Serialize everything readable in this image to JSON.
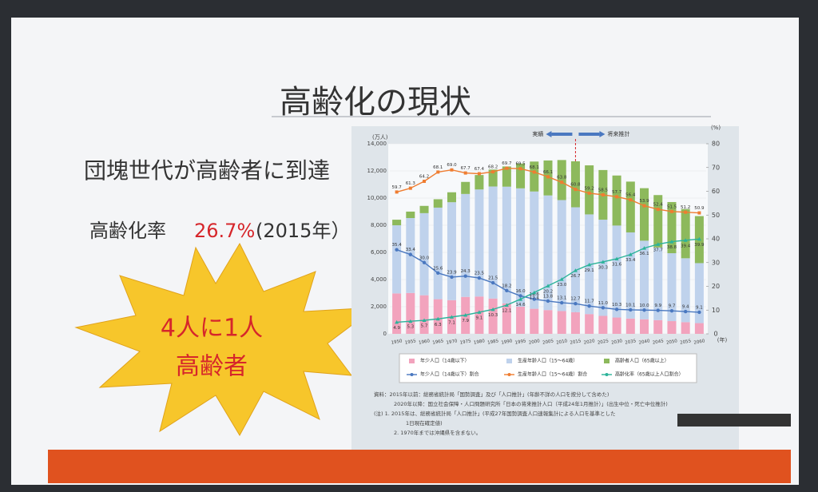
{
  "slide": {
    "title": "高齢化の現状",
    "subtitle": "団塊世代が高齢者に到達",
    "rate_label": "高齢化率",
    "rate_value": "26.7%",
    "rate_year": "(2015年）",
    "burst_line1": "4人に1人",
    "burst_line2": "高齢者"
  },
  "chart_data": {
    "type": "bar",
    "y_unit": "(万人)",
    "y2_unit": "(%)",
    "x_unit": "(年)",
    "annotations": [
      "実績",
      "将来推計"
    ],
    "categories": [
      "1950",
      "1955",
      "1960",
      "1965",
      "1970",
      "1975",
      "1980",
      "1985",
      "1990",
      "1995",
      "2000",
      "2005",
      "2010",
      "2015",
      "2020",
      "2025",
      "2030",
      "2035",
      "2040",
      "2045",
      "2050",
      "2055",
      "2060"
    ],
    "ylim": [
      0,
      14000
    ],
    "yticks": [
      0,
      {
        "value": 2000,
        "label": "2,000"
      },
      {
        "value": 4000,
        "label": "4,000"
      },
      {
        "value": 6000,
        "label": "6,000"
      },
      {
        "value": 8000,
        "label": "8,000"
      },
      {
        "value": 10000,
        "label": "10,000"
      },
      {
        "value": 12000,
        "label": "12,000"
      },
      {
        "value": 14000,
        "label": "14,000"
      }
    ],
    "y2lim": [
      0,
      80
    ],
    "y2ticks": [
      0,
      10,
      20,
      30,
      40,
      50,
      60,
      70,
      80
    ],
    "series": [
      {
        "name": "年少人口（14歳以下）",
        "type": "bar",
        "color": "#f2a3bd",
        "values": [
          2979,
          3012,
          2843,
          2553,
          2482,
          2722,
          2751,
          2603,
          2249,
          2001,
          1847,
          1752,
          1680,
          1595,
          1457,
          1324,
          1204,
          1129,
          1073,
          1012,
          939,
          861,
          791
        ]
      },
      {
        "name": "生産年齢人口（15～64歳）",
        "type": "bar",
        "color": "#bfd2ec",
        "values": [
          5017,
          5517,
          6047,
          6744,
          7212,
          7581,
          7883,
          8251,
          8590,
          8716,
          8638,
          8442,
          8174,
          7728,
          7341,
          7085,
          6773,
          6343,
          5787,
          5353,
          5001,
          4706,
          4418
        ]
      },
      {
        "name": "高齢者人口（65歳以上）",
        "type": "bar",
        "color": "#8db95c",
        "values": [
          411,
          475,
          535,
          618,
          733,
          887,
          1065,
          1247,
          1489,
          1826,
          2204,
          2576,
          2948,
          3387,
          3612,
          3657,
          3685,
          3741,
          3868,
          3856,
          3768,
          3626,
          3464
        ]
      },
      {
        "name": "年少人口（14歳以下）割合",
        "type": "line",
        "axis": "y2",
        "color": "#4a78c0",
        "values": [
          35.4,
          33.4,
          30.0,
          25.6,
          23.9,
          24.3,
          23.5,
          21.5,
          18.2,
          16.0,
          14.6,
          13.8,
          13.1,
          12.7,
          11.7,
          11.0,
          10.3,
          10.1,
          10.0,
          9.9,
          9.7,
          9.4,
          9.1
        ],
        "value_labels": [
          "35.4",
          "33.4",
          "30.0",
          "25.6",
          "23.9",
          "24.3",
          "23.5",
          "21.5",
          "18.2",
          "16.0",
          "14.6",
          "13.8",
          "13.1",
          "12.7",
          "11.7",
          "11.0",
          "10.3",
          "10.1",
          "10.0",
          "9.9",
          "9.7",
          "9.4",
          "9.1"
        ]
      },
      {
        "name": "生産年齢人口（15～64歳）割合",
        "type": "line",
        "axis": "y2",
        "color": "#ef7d31",
        "values": [
          59.7,
          61.3,
          64.2,
          68.1,
          69.0,
          67.7,
          67.4,
          68.2,
          69.7,
          69.5,
          68.1,
          66.1,
          63.8,
          60.8,
          59.2,
          58.5,
          57.7,
          56.4,
          53.9,
          52.4,
          51.5,
          51.2,
          50.9
        ],
        "value_labels": [
          "59.7",
          "61.3",
          "64.2",
          "68.1",
          "69.0",
          "67.7",
          "67.4",
          "68.2",
          "69.7",
          "69.5",
          "68.1",
          "66.1",
          "63.8",
          "60.8",
          "59.2",
          "58.5",
          "57.7",
          "56.4",
          "53.9",
          "52.4",
          "51.5",
          "51.2",
          "50.9"
        ]
      },
      {
        "name": "高齢化率（65歳以上人口割合）",
        "type": "line",
        "axis": "y2",
        "color": "#2bb39a",
        "values": [
          4.9,
          5.3,
          5.7,
          6.3,
          7.1,
          7.9,
          9.1,
          10.3,
          12.1,
          14.6,
          17.4,
          20.2,
          23.0,
          26.7,
          29.1,
          30.3,
          31.6,
          33.4,
          36.1,
          37.7,
          38.8,
          39.4,
          39.9
        ],
        "value_labels": [
          "4.9",
          "5.3",
          "5.7",
          "6.3",
          "7.1",
          "7.9",
          "9.1",
          "10.3",
          "12.1",
          "14.6",
          "17.4",
          "20.2",
          "23.0",
          "26.7",
          "29.1",
          "30.3",
          "31.6",
          "33.4",
          "36.1",
          "37.7",
          "38.8",
          "39.4",
          "39.9"
        ]
      }
    ],
    "notes": [
      "資料：2015年以前：総務省統計局「国勢調査」及び「人口推計」(年齢不詳の人口を按分して含めた)",
      "2020年以降：国立社会保障・人口問題研究所「日本の将来推計人口（平成24年1月推計）」(出生中位・死亡中位推計)",
      "(注) 1. 2015年は、総務省統計局「人口推計」(平成27年国勢調査人口速報集計による人口を基準とした",
      "1日現在確定値)",
      "2. 1970年までは沖縄県を含まない。"
    ]
  }
}
